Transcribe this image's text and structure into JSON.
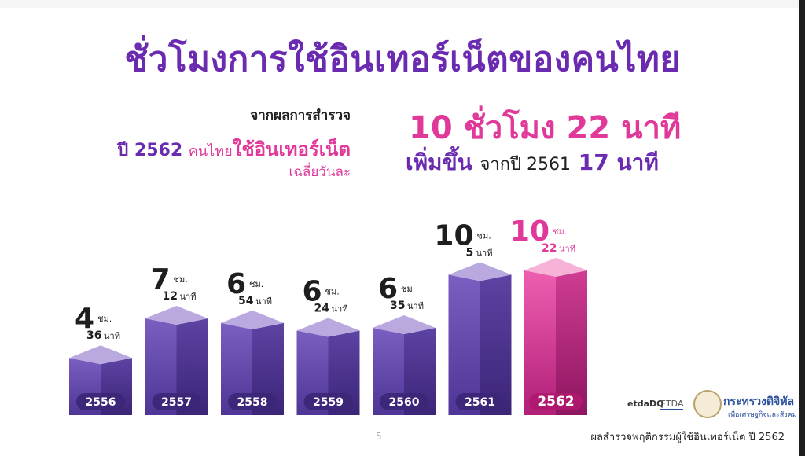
{
  "title": "ชั่วโมงการใช้อินเทอร์เน็ตของคนไทย",
  "intro": {
    "line1": "จากผลการสำรวจ",
    "year_label": "ปี 2562",
    "thai_people": "คนไทย",
    "use_internet": "ใช้อินเทอร์เน็ต",
    "average": "เฉลี่ยวันละ"
  },
  "headline": {
    "hours": "10 ชั่วโมง 22 นาที",
    "increase_word": "เพิ่มขึ้น",
    "from_year": "จากปี 2561",
    "increase_value": "17 นาที"
  },
  "colors": {
    "purple": "#6a2bb0",
    "pink": "#e0399a",
    "bar_purple": "#6a4ab0",
    "bar_pink": "#d02d8b"
  },
  "chart_data": {
    "type": "bar",
    "categories": [
      "2556",
      "2557",
      "2558",
      "2559",
      "2560",
      "2561",
      "2562"
    ],
    "values": [
      4.6,
      7.2,
      6.9,
      6.4,
      6.583,
      10.083,
      10.367
    ],
    "data_labels": [
      {
        "hours": "4",
        "hr_unit": "ชม.",
        "minutes": "36",
        "min_unit": "นาที"
      },
      {
        "hours": "7",
        "hr_unit": "ชม.",
        "minutes": "12",
        "min_unit": "นาที"
      },
      {
        "hours": "6",
        "hr_unit": "ชม.",
        "minutes": "54",
        "min_unit": "นาที"
      },
      {
        "hours": "6",
        "hr_unit": "ชม.",
        "minutes": "24",
        "min_unit": "นาที"
      },
      {
        "hours": "6",
        "hr_unit": "ชม.",
        "minutes": "35",
        "min_unit": "นาที"
      },
      {
        "hours": "10",
        "hr_unit": "ชม.",
        "minutes": "5",
        "min_unit": "นาที"
      },
      {
        "hours": "10",
        "hr_unit": "ชม.",
        "minutes": "22",
        "min_unit": "นาที"
      }
    ],
    "highlight_index": 6
  },
  "footer": {
    "page_number": "5",
    "source": "ผลสำรวจพฤติกรรมผู้ใช้อินเทอร์เน็ต ปี 2562",
    "logo_etda_dq": "etdaDQ",
    "logo_etda": "ETDA",
    "ministry": "กระทรวงดิจิทัล",
    "ministry_sub": "เพื่อเศรษฐกิจและสังคม"
  }
}
